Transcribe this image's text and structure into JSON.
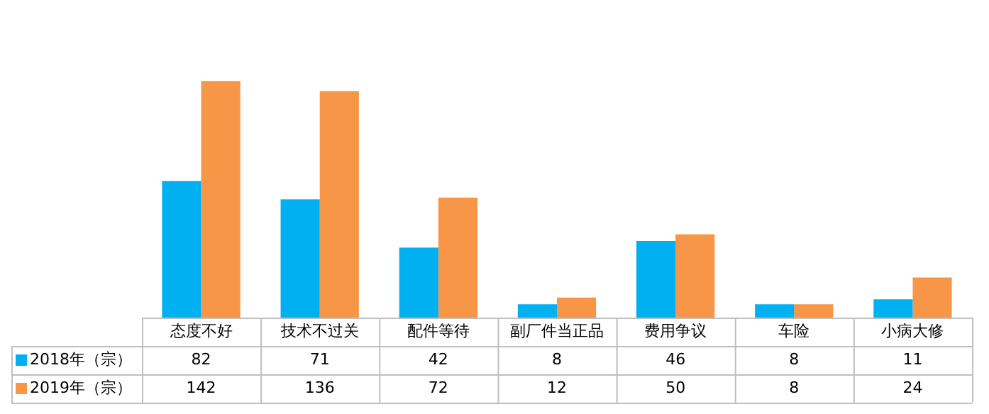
{
  "chart_data": {
    "type": "bar",
    "categories": [
      "态度不好",
      "技术不过关",
      "配件等待",
      "副厂件当正品",
      "费用争议",
      "车险",
      "小病大修"
    ],
    "series": [
      {
        "name": "2018年（宗）",
        "color": "#00b0f0",
        "values": [
          82,
          71,
          42,
          8,
          46,
          8,
          11
        ]
      },
      {
        "name": "2019年（宗）",
        "color": "#f79646",
        "values": [
          142,
          136,
          72,
          12,
          50,
          8,
          24
        ]
      }
    ],
    "data_labels": true,
    "legend": "bottom left"
  }
}
